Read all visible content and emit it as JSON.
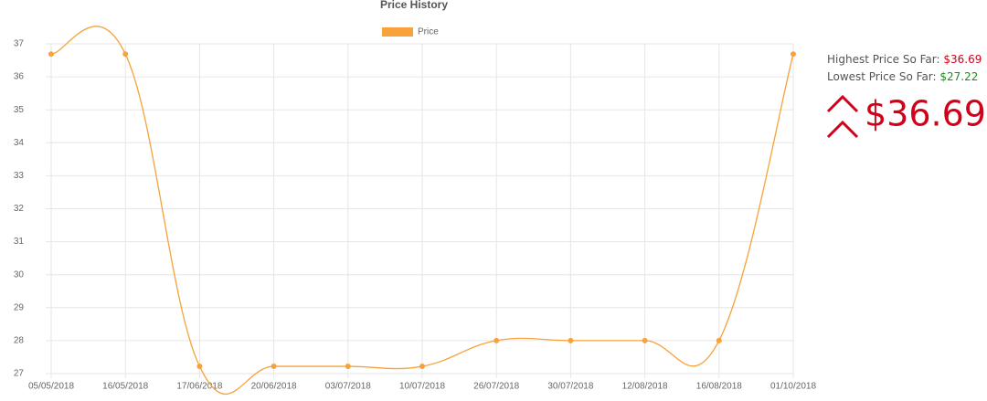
{
  "chart_data": {
    "type": "line",
    "title": "Price History",
    "categories": [
      "05/05/2018",
      "16/05/2018",
      "17/06/2018",
      "20/06/2018",
      "03/07/2018",
      "10/07/2018",
      "26/07/2018",
      "30/07/2018",
      "12/08/2018",
      "16/08/2018",
      "01/10/2018"
    ],
    "series": [
      {
        "name": "Price",
        "color": "#f7a23a",
        "values": [
          36.69,
          36.69,
          27.22,
          27.22,
          27.22,
          27.22,
          28,
          28,
          28,
          28,
          36.69
        ]
      }
    ],
    "ylim": [
      27,
      37
    ],
    "yticks": [
      27,
      28,
      29,
      30,
      31,
      32,
      33,
      34,
      35,
      36,
      37
    ],
    "grid": true,
    "legend": "top"
  },
  "panel": {
    "highest_label": "Highest Price So Far:",
    "highest": "$36.69",
    "lowest_label": "Lowest Price So Far:",
    "lowest": "$27.22",
    "current": "$36.69"
  }
}
